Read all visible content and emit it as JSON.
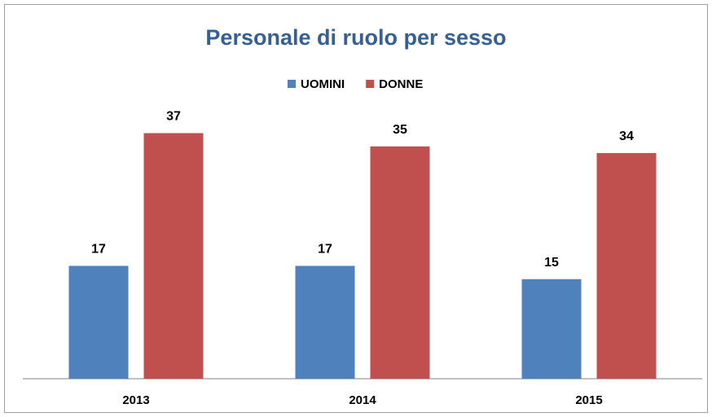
{
  "chart_data": {
    "type": "bar",
    "title": "Personale di ruolo per sesso",
    "categories": [
      "2013",
      "2014",
      "2015"
    ],
    "series": [
      {
        "name": "UOMINI",
        "color": "#4f81bd",
        "values": [
          17,
          17,
          15
        ]
      },
      {
        "name": "DONNE",
        "color": "#c0504d",
        "values": [
          37,
          35,
          34
        ]
      }
    ],
    "ylim": [
      0,
      40
    ],
    "legend": "top"
  }
}
